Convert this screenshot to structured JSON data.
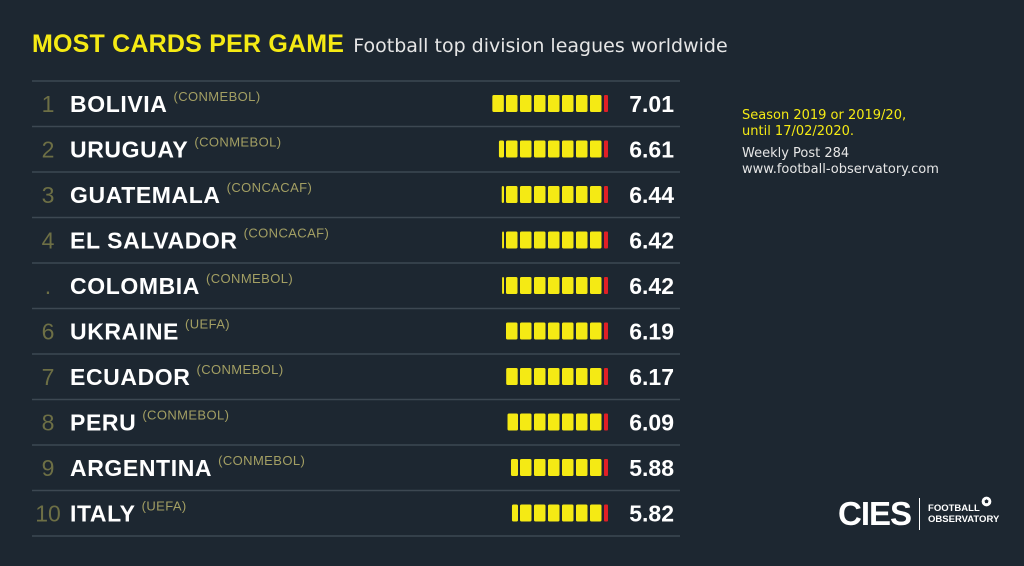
{
  "header": {
    "title": "MOST CARDS PER GAME",
    "subtitle": "Football top division leagues worldwide"
  },
  "note": {
    "season": "Season 2019 or 2019/20,",
    "until": "until 17/02/2020.",
    "post": "Weekly Post 284",
    "url": "www.football-observatory.com"
  },
  "logo": {
    "brand": "CIES",
    "line1": "FOOTBALL",
    "line2": "OBSERVATORY"
  },
  "colors": {
    "background": "#1d2731",
    "title_yellow": "#f5ea14",
    "card_yellow": "#f5ea14",
    "card_red": "#e01f26",
    "rank_text": "#6d6f45",
    "confed_text": "#a39f63"
  },
  "chart_data": {
    "type": "table",
    "columns": [
      "rank",
      "country",
      "confederation",
      "cards_per_game"
    ],
    "rows": [
      {
        "rank": "1",
        "country": "BOLIVIA",
        "confederation": "(CONMEBOL)",
        "value": 7.01,
        "label": "7.01"
      },
      {
        "rank": "2",
        "country": "URUGUAY",
        "confederation": "(CONMEBOL)",
        "value": 6.61,
        "label": "6.61"
      },
      {
        "rank": "3",
        "country": "GUATEMALA",
        "confederation": "(CONCACAF)",
        "value": 6.44,
        "label": "6.44"
      },
      {
        "rank": "4",
        "country": "EL SALVADOR",
        "confederation": "(CONCACAF)",
        "value": 6.42,
        "label": "6.42"
      },
      {
        "rank": ".",
        "country": "COLOMBIA",
        "confederation": "(CONMEBOL)",
        "value": 6.42,
        "label": "6.42"
      },
      {
        "rank": "6",
        "country": "UKRAINE",
        "confederation": "(UEFA)",
        "value": 6.19,
        "label": "6.19"
      },
      {
        "rank": "7",
        "country": "ECUADOR",
        "confederation": "(CONMEBOL)",
        "value": 6.17,
        "label": "6.17"
      },
      {
        "rank": "8",
        "country": "PERU",
        "confederation": "(CONMEBOL)",
        "value": 6.09,
        "label": "6.09"
      },
      {
        "rank": "9",
        "country": "ARGENTINA",
        "confederation": "(CONMEBOL)",
        "value": 5.88,
        "label": "5.88"
      },
      {
        "rank": "10",
        "country": "ITALY",
        "confederation": "(UEFA)",
        "value": 5.82,
        "label": "5.82"
      }
    ]
  }
}
